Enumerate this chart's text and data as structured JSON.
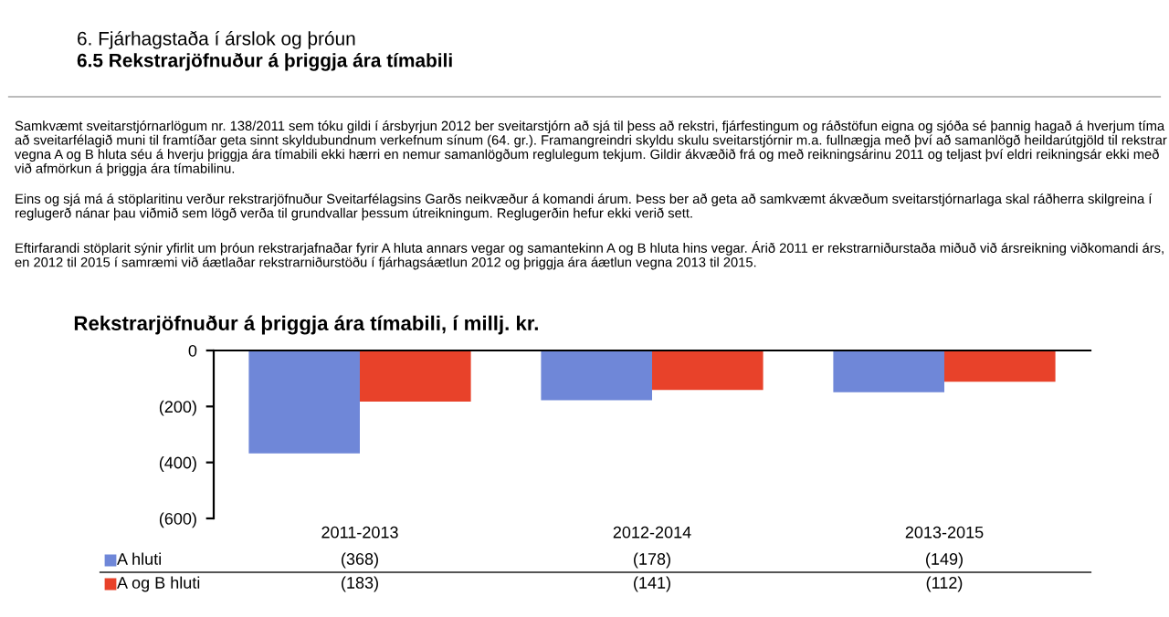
{
  "chart_data": {
    "type": "bar",
    "title": "Rekstrarjöfnuður á þriggja ára tímabili, í millj. kr.",
    "annotations": [
      "6. Fjárhagstaða í árslok og þróun",
      "6.5 Rekstrarjöfnuður á þriggja ára tímabili",
      "Samkvæmt sveitarstjórnarlögum nr. 138/2011 sem tóku gildi í ársbyrjun 2012 ber sveitarstjórn að sjá til þess að rekstri, fjárfestingum og ráðstöfun eigna og sjóða sé þannig hagað á hverjum tíma að sveitarfélagið muni til framtíðar geta sinnt skyldubundnum verkefnum sínum (64. gr.). Framangreindri skyldu skulu sveitarstjórnir m.a. fullnægja með því að samanlögð heildarútgjöld til rekstrar vegna A og B hluta séu á hverju þriggja ára tímabili ekki hærri en nemur samanlögðum reglulegum tekjum. Gildir ákvæðið frá og með reikningsárinu 2011 og teljast því eldri reikningsár ekki með við afmörkun á þriggja ára tímabilinu.",
      "Eins og sjá má á stöplaritinu verður rekstrarjöfnuður Sveitarfélagsins Garðs neikvæður á komandi árum. Þess ber að geta að samkvæmt ákvæðum sveitarstjórnarlaga skal ráðherra skilgreina í reglugerð nánar þau viðmið sem lögð verða til grundvallar þessum útreikningum. Reglugerðin hefur ekki verið sett.",
      "Eftirfarandi stöplarit sýnir yfirlit um þróun rekstrarjafnaðar fyrir A hluta annars vegar og samantekinn A og B hluta hins vegar. Árið 2011 er rekstrarniðurstaða miðuð við ársreikning viðkomandi árs, en 2012 til 2015 í samræmi við áætlaðar rekstrarniðurstöðu í fjárhagsáætlun 2012 og þriggja ára áætlun vegna 2013 til 2015."
    ],
    "categories": [
      "2011-2013",
      "2012-2014",
      "2013-2015"
    ],
    "series": [
      {
        "name": "A hluti",
        "color": "#6f87d8",
        "values": [
          -368,
          -178,
          -149
        ],
        "value_labels": [
          "(368)",
          "(178)",
          "(149)"
        ]
      },
      {
        "name": "A og B hluti",
        "color": "#e8422a",
        "values": [
          -183,
          -141,
          -112
        ],
        "value_labels": [
          "(183)",
          "(141)",
          "(112)"
        ]
      }
    ],
    "ylim": [
      -600,
      0
    ],
    "yticks": [
      {
        "value": -600,
        "label": "(600)"
      },
      {
        "value": -400,
        "label": "(400)"
      },
      {
        "value": -200,
        "label": "(200)"
      },
      0
    ],
    "legend": "bottom",
    "grid": false
  }
}
